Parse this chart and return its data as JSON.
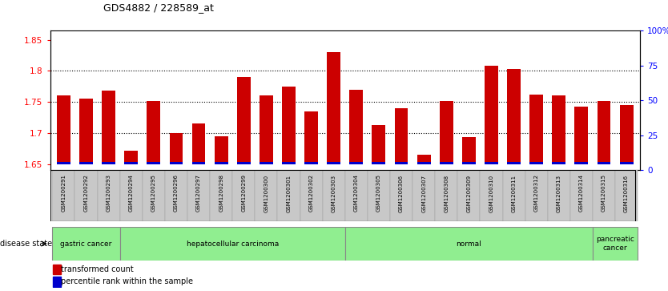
{
  "title": "GDS4882 / 228589_at",
  "samples": [
    "GSM1200291",
    "GSM1200292",
    "GSM1200293",
    "GSM1200294",
    "GSM1200295",
    "GSM1200296",
    "GSM1200297",
    "GSM1200298",
    "GSM1200299",
    "GSM1200300",
    "GSM1200301",
    "GSM1200302",
    "GSM1200303",
    "GSM1200304",
    "GSM1200305",
    "GSM1200306",
    "GSM1200307",
    "GSM1200308",
    "GSM1200309",
    "GSM1200310",
    "GSM1200311",
    "GSM1200312",
    "GSM1200313",
    "GSM1200314",
    "GSM1200315",
    "GSM1200316"
  ],
  "transformed_count": [
    1.76,
    1.755,
    1.768,
    1.672,
    1.752,
    1.7,
    1.715,
    1.695,
    1.79,
    1.76,
    1.775,
    1.735,
    1.83,
    1.77,
    1.713,
    1.74,
    1.665,
    1.752,
    1.693,
    1.808,
    1.803,
    1.762,
    1.76,
    1.742,
    1.752,
    1.745
  ],
  "percentile_rank": [
    3,
    8,
    5,
    10,
    8,
    6,
    4,
    3,
    6,
    6,
    6,
    4,
    5,
    5,
    4,
    5,
    4,
    5,
    5,
    6,
    5,
    6,
    5,
    4,
    4,
    4
  ],
  "group_boundaries": [
    [
      0,
      3,
      "gastric cancer"
    ],
    [
      3,
      13,
      "hepatocellular carcinoma"
    ],
    [
      13,
      24,
      "normal"
    ],
    [
      24,
      26,
      "pancreatic\ncancer"
    ]
  ],
  "ylim_left": [
    1.64,
    1.865
  ],
  "ylim_right": [
    0,
    100
  ],
  "yticks_left": [
    1.65,
    1.7,
    1.75,
    1.8,
    1.85
  ],
  "ytick_labels_left": [
    "1.65",
    "1.7",
    "1.75",
    "1.8",
    "1.85"
  ],
  "yticks_right": [
    0,
    25,
    50,
    75,
    100
  ],
  "ytick_labels_right": [
    "0",
    "25",
    "50",
    "75",
    "100%"
  ],
  "bar_color": "#CC0000",
  "percentile_color": "#0000CC",
  "baseline": 1.65,
  "background_color": "#FFFFFF",
  "tick_area_color": "#C8C8C8",
  "group_color": "#90EE90",
  "group_border_color": "#888888"
}
